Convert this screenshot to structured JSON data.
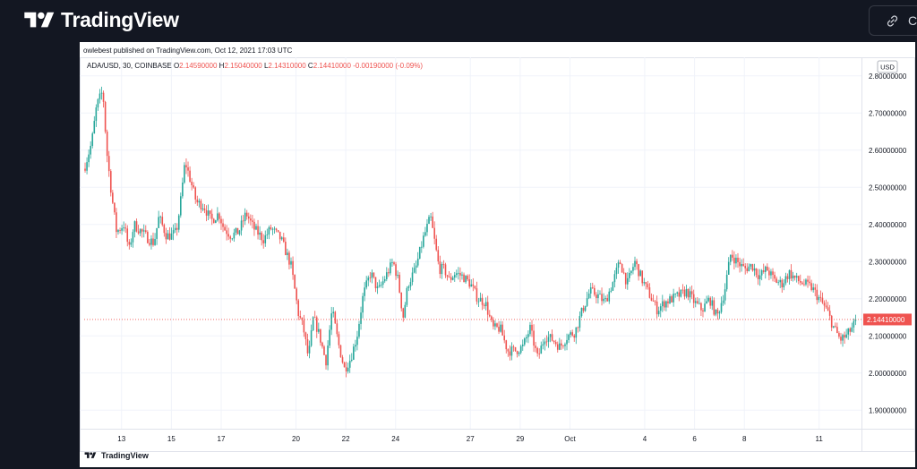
{
  "header": {
    "brand": "TradingView",
    "copy_button_label": "Co"
  },
  "publisher_line": "owlebest published on TradingView.com, Oct 12, 2021 17:03 UTC",
  "legend": {
    "symbol": "ADA/USD, 30, COINBASE",
    "open_label": "O",
    "open": "2.14590000",
    "high_label": "H",
    "high": "2.15040000",
    "low_label": "L",
    "low": "2.14310000",
    "close_label": "C",
    "close": "2.14410000",
    "change": "-0.00190000 (-0.09%)"
  },
  "currency_label": "USD",
  "last_price_label": "2.14410000",
  "footer_brand": "TradingView",
  "colors": {
    "up": "#26a69a",
    "down": "#ef5350",
    "grid": "#f0f3fa",
    "background": "#131722"
  },
  "chart_data": {
    "type": "candlestick",
    "symbol": "ADA/USD",
    "interval": "30",
    "exchange": "COINBASE",
    "ylim": [
      1.85,
      2.85
    ],
    "y_ticks": [
      1.9,
      2.0,
      2.1,
      2.2,
      2.3,
      2.4,
      2.5,
      2.6,
      2.7,
      2.8
    ],
    "y_tick_labels": [
      "1.90000000",
      "2.00000000",
      "2.10000000",
      "2.20000000",
      "2.30000000",
      "2.40000000",
      "2.50000000",
      "2.60000000",
      "2.70000000",
      "2.80000000"
    ],
    "x_tick_labels": [
      "13",
      "15",
      "17",
      "20",
      "22",
      "24",
      "27",
      "29",
      "Oct",
      "4",
      "6",
      "8",
      "11"
    ],
    "x_ticks": [
      1.5,
      3.5,
      5.5,
      8.5,
      10.5,
      12.5,
      15.5,
      17.5,
      19.5,
      22.5,
      24.5,
      26.5,
      29.5
    ],
    "x_range": [
      0,
      31.2
    ],
    "last_price": 2.1441,
    "grid": true,
    "price_path": [
      [
        0.0,
        2.55
      ],
      [
        0.3,
        2.62
      ],
      [
        0.5,
        2.72
      ],
      [
        0.75,
        2.76
      ],
      [
        0.9,
        2.6
      ],
      [
        1.1,
        2.48
      ],
      [
        1.3,
        2.38
      ],
      [
        1.6,
        2.4
      ],
      [
        1.8,
        2.33
      ],
      [
        2.0,
        2.4
      ],
      [
        2.3,
        2.38
      ],
      [
        2.6,
        2.36
      ],
      [
        2.8,
        2.35
      ],
      [
        3.0,
        2.42
      ],
      [
        3.3,
        2.37
      ],
      [
        3.5,
        2.37
      ],
      [
        3.7,
        2.38
      ],
      [
        3.85,
        2.45
      ],
      [
        4.05,
        2.57
      ],
      [
        4.3,
        2.51
      ],
      [
        4.5,
        2.46
      ],
      [
        4.8,
        2.45
      ],
      [
        5.1,
        2.41
      ],
      [
        5.4,
        2.43
      ],
      [
        5.6,
        2.39
      ],
      [
        5.9,
        2.37
      ],
      [
        6.2,
        2.38
      ],
      [
        6.5,
        2.43
      ],
      [
        6.8,
        2.39
      ],
      [
        7.2,
        2.36
      ],
      [
        7.5,
        2.39
      ],
      [
        7.9,
        2.36
      ],
      [
        8.3,
        2.29
      ],
      [
        8.6,
        2.16
      ],
      [
        8.8,
        2.12
      ],
      [
        9.0,
        2.04
      ],
      [
        9.2,
        2.15
      ],
      [
        9.45,
        2.1
      ],
      [
        9.7,
        2.03
      ],
      [
        9.95,
        2.17
      ],
      [
        10.2,
        2.08
      ],
      [
        10.45,
        2.01
      ],
      [
        10.7,
        2.04
      ],
      [
        10.95,
        2.1
      ],
      [
        11.2,
        2.21
      ],
      [
        11.5,
        2.27
      ],
      [
        11.8,
        2.22
      ],
      [
        12.1,
        2.26
      ],
      [
        12.4,
        2.3
      ],
      [
        12.6,
        2.25
      ],
      [
        12.8,
        2.15
      ],
      [
        13.0,
        2.24
      ],
      [
        13.3,
        2.28
      ],
      [
        13.6,
        2.36
      ],
      [
        13.9,
        2.42
      ],
      [
        14.05,
        2.36
      ],
      [
        14.25,
        2.28
      ],
      [
        14.45,
        2.28
      ],
      [
        14.65,
        2.25
      ],
      [
        14.9,
        2.27
      ],
      [
        15.2,
        2.26
      ],
      [
        15.5,
        2.24
      ],
      [
        15.8,
        2.2
      ],
      [
        16.1,
        2.19
      ],
      [
        16.4,
        2.12
      ],
      [
        16.7,
        2.12
      ],
      [
        17.0,
        2.06
      ],
      [
        17.3,
        2.06
      ],
      [
        17.6,
        2.07
      ],
      [
        17.9,
        2.12
      ],
      [
        18.2,
        2.04
      ],
      [
        18.5,
        2.1
      ],
      [
        18.8,
        2.09
      ],
      [
        19.1,
        2.07
      ],
      [
        19.4,
        2.1
      ],
      [
        19.7,
        2.11
      ],
      [
        20.0,
        2.17
      ],
      [
        20.3,
        2.22
      ],
      [
        20.6,
        2.21
      ],
      [
        20.9,
        2.19
      ],
      [
        21.2,
        2.24
      ],
      [
        21.5,
        2.3
      ],
      [
        21.8,
        2.24
      ],
      [
        22.1,
        2.3
      ],
      [
        22.4,
        2.25
      ],
      [
        22.7,
        2.21
      ],
      [
        23.0,
        2.17
      ],
      [
        23.3,
        2.19
      ],
      [
        23.6,
        2.2
      ],
      [
        23.9,
        2.21
      ],
      [
        24.2,
        2.22
      ],
      [
        24.5,
        2.19
      ],
      [
        24.8,
        2.17
      ],
      [
        25.1,
        2.2
      ],
      [
        25.4,
        2.15
      ],
      [
        25.7,
        2.22
      ],
      [
        25.95,
        2.32
      ],
      [
        26.2,
        2.3
      ],
      [
        26.5,
        2.28
      ],
      [
        26.8,
        2.29
      ],
      [
        27.1,
        2.26
      ],
      [
        27.4,
        2.28
      ],
      [
        27.7,
        2.25
      ],
      [
        28.0,
        2.24
      ],
      [
        28.3,
        2.27
      ],
      [
        28.6,
        2.25
      ],
      [
        28.9,
        2.24
      ],
      [
        29.2,
        2.23
      ],
      [
        29.5,
        2.2
      ],
      [
        29.8,
        2.17
      ],
      [
        30.1,
        2.12
      ],
      [
        30.35,
        2.09
      ],
      [
        30.6,
        2.1
      ],
      [
        30.8,
        2.12
      ],
      [
        31.0,
        2.14
      ]
    ]
  }
}
